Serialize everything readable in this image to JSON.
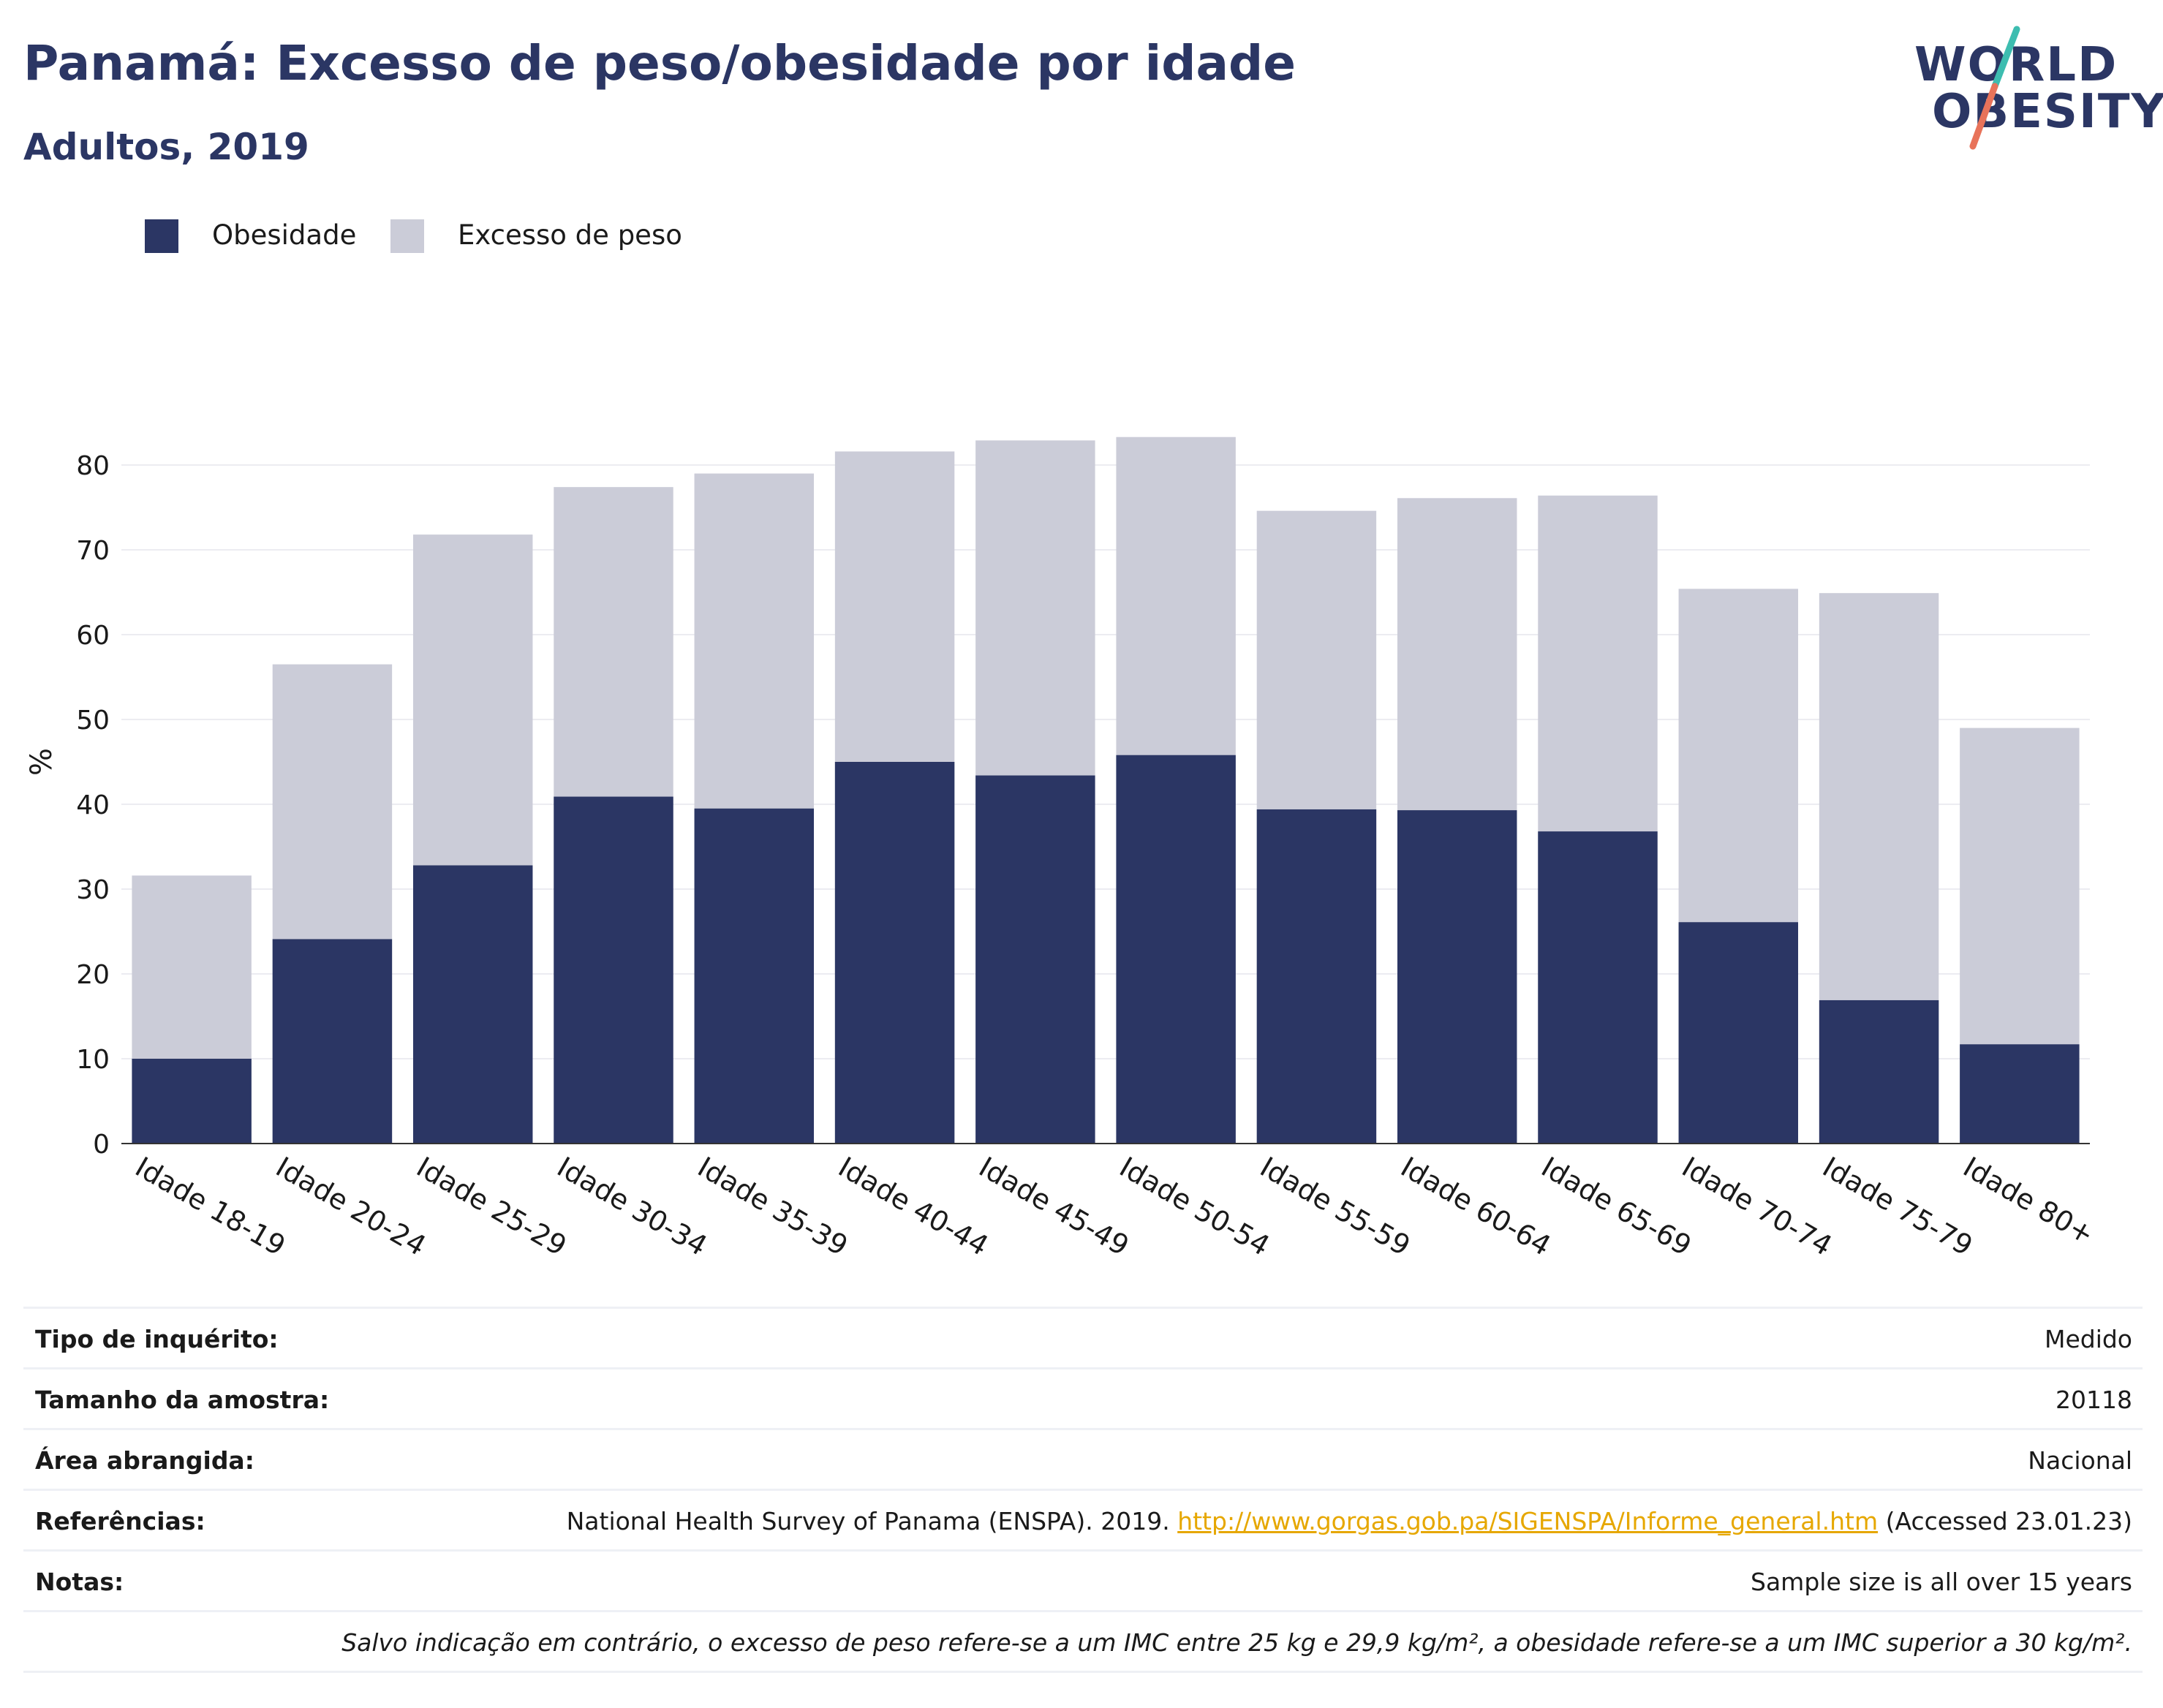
{
  "header": {
    "title": "Panamá: Excesso de peso/obesidade por idade",
    "subtitle": "Adultos, 2019"
  },
  "logo": {
    "line1": "WORLD",
    "line2": "OBESITY",
    "accent_colors": [
      "#3dbdb0",
      "#e8735a"
    ]
  },
  "legend": {
    "items": [
      {
        "label": "Obesidade",
        "color": "#2b3664"
      },
      {
        "label": "Excesso de peso",
        "color": "#cbccd8"
      }
    ]
  },
  "chart_data": {
    "type": "bar",
    "stacked": "overlay",
    "categories": [
      "Idade 18-19",
      "Idade 20-24",
      "Idade 25-29",
      "Idade 30-34",
      "Idade 35-39",
      "Idade 40-44",
      "Idade 45-49",
      "Idade 50-54",
      "Idade 55-59",
      "Idade 60-64",
      "Idade 65-69",
      "Idade 70-74",
      "Idade 75-79",
      "Idade 80+"
    ],
    "series": [
      {
        "name": "Excesso de peso",
        "color": "#cbccd8",
        "values": [
          31.6,
          56.5,
          71.8,
          77.4,
          79.0,
          81.6,
          82.9,
          83.3,
          74.6,
          76.1,
          76.4,
          65.4,
          64.9,
          49.0
        ]
      },
      {
        "name": "Obesidade",
        "color": "#2b3664",
        "values": [
          10.0,
          24.1,
          32.8,
          40.9,
          39.5,
          45.0,
          43.4,
          45.8,
          39.4,
          39.3,
          36.8,
          26.1,
          16.9,
          11.7
        ]
      }
    ],
    "ylabel": "%",
    "xlabel": "",
    "ylim": [
      0,
      90
    ],
    "yticks": [
      0,
      10,
      20,
      30,
      40,
      50,
      60,
      70,
      80
    ],
    "grid": true
  },
  "info": {
    "rows": [
      {
        "label": "Tipo de inquérito:",
        "value": "Medido"
      },
      {
        "label": "Tamanho da amostra:",
        "value": "20118"
      },
      {
        "label": "Área abrangida:",
        "value": "Nacional"
      }
    ],
    "references": {
      "label": "Referências:",
      "prefix": "National Health Survey of Panama (ENSPA). 2019. ",
      "link": "http://www.gorgas.gob.pa/SIGENSPA/Informe_general.htm",
      "suffix": " (Accessed 23.01.23)"
    },
    "notes": {
      "label": "Notas:",
      "value": "Sample size is all over 15 years"
    },
    "footnote": "Salvo indicação em contrário, o excesso de peso refere-se a um IMC entre 25 kg e 29,9 kg/m², a obesidade refere-se a um IMC superior a 30 kg/m²."
  }
}
